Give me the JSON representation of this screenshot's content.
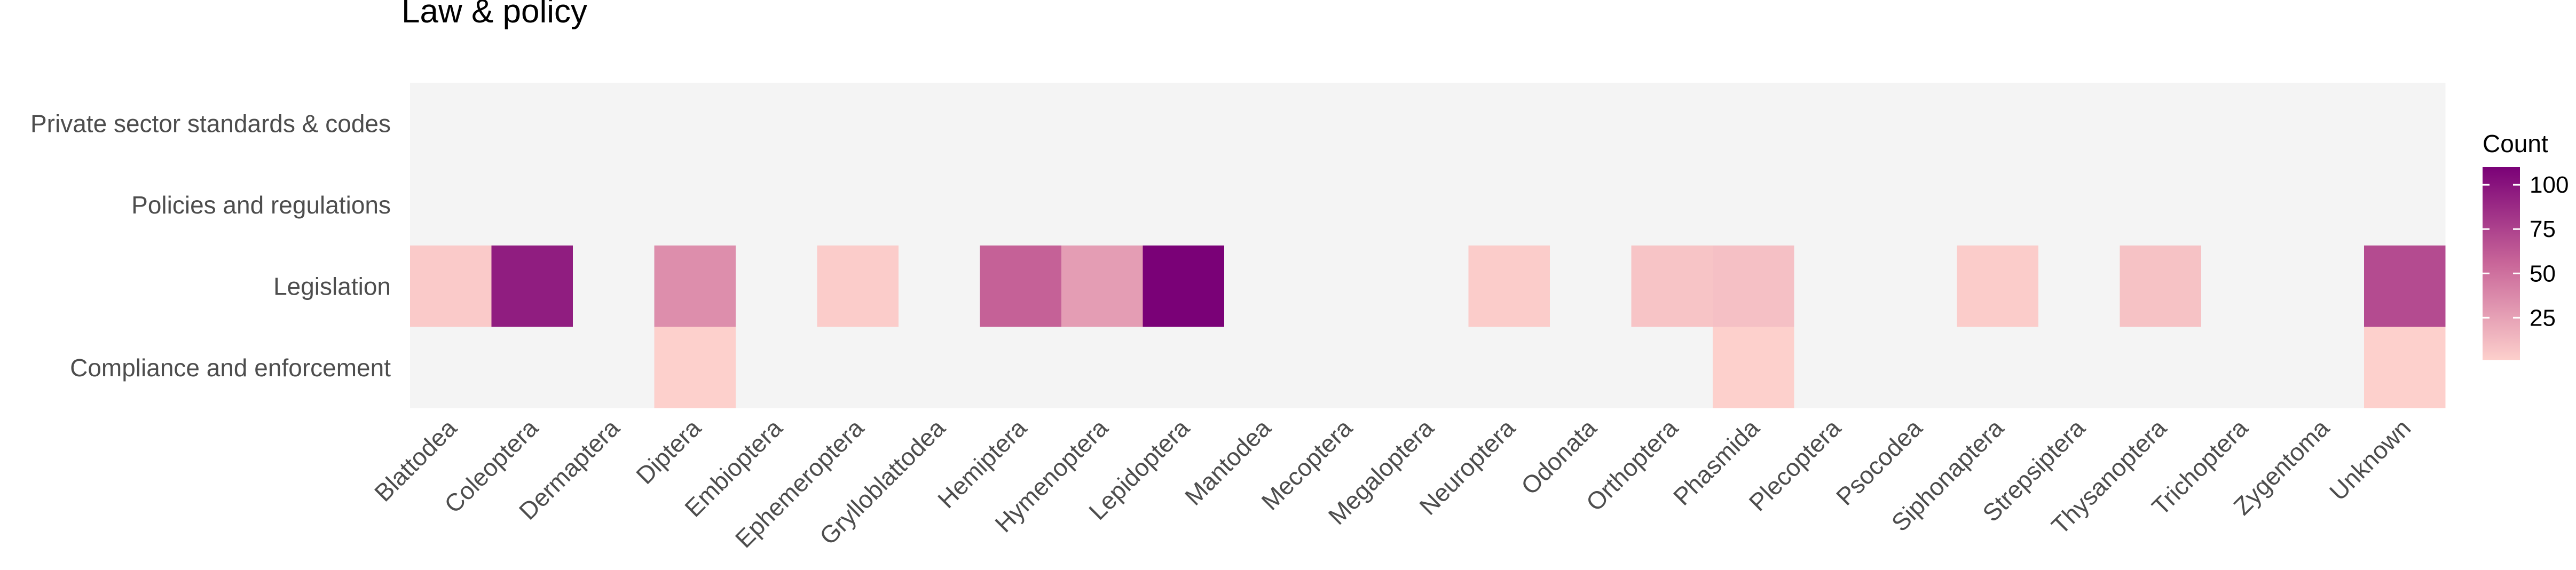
{
  "chart_data": {
    "type": "heatmap",
    "title": "Law & policy",
    "xlabel": "",
    "ylabel": "",
    "x_categories": [
      "Blattodea",
      "Coleoptera",
      "Dermaptera",
      "Diptera",
      "Embioptera",
      "Ephemeroptera",
      "Grylloblattodea",
      "Hemiptera",
      "Hymenoptera",
      "Lepidoptera",
      "Mantodea",
      "Mecoptera",
      "Megaloptera",
      "Neuroptera",
      "Odonata",
      "Orthoptera",
      "Phasmida",
      "Plecoptera",
      "Psocodea",
      "Siphonaptera",
      "Strepsiptera",
      "Thysanoptera",
      "Trichoptera",
      "Zygentoma",
      "Unknown"
    ],
    "y_categories": [
      "Private sector standards & codes",
      "Policies and regulations",
      "Legislation",
      "Compliance and enforcement"
    ],
    "cells": [
      {
        "x": "Blattodea",
        "y": "Legislation",
        "value": 4
      },
      {
        "x": "Coleoptera",
        "y": "Legislation",
        "value": 95
      },
      {
        "x": "Diptera",
        "y": "Legislation",
        "value": 35
      },
      {
        "x": "Ephemeroptera",
        "y": "Legislation",
        "value": 3
      },
      {
        "x": "Hemiptera",
        "y": "Legislation",
        "value": 58
      },
      {
        "x": "Hymenoptera",
        "y": "Legislation",
        "value": 27
      },
      {
        "x": "Lepidoptera",
        "y": "Legislation",
        "value": 110
      },
      {
        "x": "Neuroptera",
        "y": "Legislation",
        "value": 3
      },
      {
        "x": "Orthoptera",
        "y": "Legislation",
        "value": 7
      },
      {
        "x": "Phasmida",
        "y": "Legislation",
        "value": 9
      },
      {
        "x": "Siphonaptera",
        "y": "Legislation",
        "value": 3
      },
      {
        "x": "Thysanoptera",
        "y": "Legislation",
        "value": 8
      },
      {
        "x": "Unknown",
        "y": "Legislation",
        "value": 70
      },
      {
        "x": "Diptera",
        "y": "Compliance and enforcement",
        "value": 1
      },
      {
        "x": "Phasmida",
        "y": "Compliance and enforcement",
        "value": 1
      },
      {
        "x": "Unknown",
        "y": "Compliance and enforcement",
        "value": 1
      }
    ],
    "legend": {
      "title": "Count",
      "ticks": [
        25,
        50,
        75,
        100
      ],
      "range": [
        1,
        110
      ],
      "color_low": "#fdd0cc",
      "color_high": "#7a0177",
      "placement": "right"
    },
    "panel_background": "#f4f4f4",
    "grid": false
  }
}
